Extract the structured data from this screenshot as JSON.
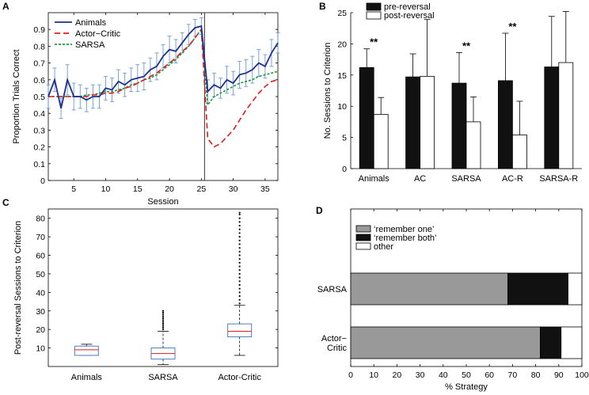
{
  "chart_data": [
    {
      "panel": "A",
      "type": "line",
      "xlabel": "Session",
      "ylabel": "Proportion Trials Correct",
      "xlim": [
        1,
        37
      ],
      "ylim": [
        0,
        1
      ],
      "xticks": [
        5,
        10,
        15,
        20,
        25,
        30,
        35
      ],
      "yticks": [
        0,
        0.1,
        0.2,
        0.3,
        0.4,
        0.5,
        0.6,
        0.7,
        0.8,
        0.9
      ],
      "reversal_session": 25.5,
      "legend_position": "top-left",
      "series": [
        {
          "name": "Animals",
          "color": "#1f2f8f",
          "style": "solid",
          "x": [
            1,
            2,
            3,
            4,
            5,
            6,
            7,
            8,
            9,
            10,
            11,
            12,
            13,
            14,
            15,
            16,
            17,
            18,
            19,
            20,
            21,
            22,
            23,
            24,
            25,
            26,
            27,
            28,
            29,
            30,
            31,
            32,
            33,
            34,
            35,
            36,
            37
          ],
          "values": [
            0.5,
            0.6,
            0.43,
            0.6,
            0.5,
            0.5,
            0.48,
            0.5,
            0.5,
            0.55,
            0.54,
            0.59,
            0.57,
            0.6,
            0.61,
            0.62,
            0.66,
            0.68,
            0.74,
            0.78,
            0.77,
            0.82,
            0.87,
            0.91,
            0.92,
            0.53,
            0.57,
            0.55,
            0.6,
            0.58,
            0.63,
            0.64,
            0.66,
            0.7,
            0.68,
            0.76,
            0.82
          ],
          "errors": [
            0.07,
            0.07,
            0.06,
            0.09,
            0.08,
            0.07,
            0.07,
            0.07,
            0.07,
            0.07,
            0.07,
            0.07,
            0.07,
            0.07,
            0.08,
            0.08,
            0.07,
            0.08,
            0.07,
            0.08,
            0.07,
            0.06,
            0.06,
            0.05,
            0.05,
            0.07,
            0.07,
            0.06,
            0.08,
            0.07,
            0.08,
            0.08,
            0.08,
            0.08,
            0.07,
            0.08,
            0.06
          ]
        },
        {
          "name": "Actor−Critic",
          "color": "#e31a1c",
          "style": "dashed",
          "x": [
            1,
            2,
            3,
            4,
            5,
            6,
            7,
            8,
            9,
            10,
            11,
            12,
            13,
            14,
            15,
            16,
            17,
            18,
            19,
            20,
            21,
            22,
            23,
            24,
            25,
            26,
            27,
            28,
            29,
            30,
            31,
            32,
            33,
            34,
            35,
            36,
            37
          ],
          "values": [
            0.5,
            0.5,
            0.5,
            0.5,
            0.5,
            0.5,
            0.5,
            0.51,
            0.51,
            0.52,
            0.52,
            0.53,
            0.55,
            0.56,
            0.58,
            0.6,
            0.62,
            0.64,
            0.67,
            0.7,
            0.73,
            0.77,
            0.8,
            0.85,
            0.9,
            0.25,
            0.2,
            0.22,
            0.26,
            0.3,
            0.36,
            0.42,
            0.47,
            0.52,
            0.56,
            0.59,
            0.6
          ]
        },
        {
          "name": "SARSA",
          "color": "#1a9a3a",
          "style": "dotted",
          "x": [
            1,
            2,
            3,
            4,
            5,
            6,
            7,
            8,
            9,
            10,
            11,
            12,
            13,
            14,
            15,
            16,
            17,
            18,
            19,
            20,
            21,
            22,
            23,
            24,
            25,
            26,
            27,
            28,
            29,
            30,
            31,
            32,
            33,
            34,
            35,
            36,
            37
          ],
          "values": [
            0.5,
            0.5,
            0.5,
            0.5,
            0.5,
            0.5,
            0.51,
            0.51,
            0.52,
            0.53,
            0.53,
            0.54,
            0.55,
            0.57,
            0.58,
            0.6,
            0.61,
            0.63,
            0.66,
            0.69,
            0.72,
            0.76,
            0.8,
            0.85,
            0.9,
            0.45,
            0.5,
            0.52,
            0.54,
            0.56,
            0.58,
            0.59,
            0.6,
            0.62,
            0.63,
            0.64,
            0.65
          ]
        }
      ]
    },
    {
      "panel": "B",
      "type": "bar",
      "ylabel": "No. Sessions to Criterion",
      "ylim": [
        0,
        25
      ],
      "yticks": [
        0,
        5,
        10,
        15,
        20,
        25
      ],
      "categories": [
        "Animals",
        "AC",
        "SARSA",
        "AC-R",
        "SARSA-R"
      ],
      "legend_position": "top-left",
      "series": [
        {
          "name": "pre-reversal",
          "color": "#111111",
          "values": [
            16.2,
            14.7,
            13.7,
            14.1,
            16.3
          ],
          "errors": [
            3.0,
            3.7,
            4.9,
            7.6,
            8.1
          ]
        },
        {
          "name": "post-reversal",
          "color": "#ffffff",
          "values": [
            8.7,
            14.8,
            7.5,
            5.4,
            17.0
          ],
          "errors": [
            2.7,
            9.1,
            4.0,
            5.4,
            8.2
          ]
        }
      ],
      "significance": [
        "**",
        "",
        "**",
        "**",
        ""
      ]
    },
    {
      "panel": "C",
      "type": "box",
      "ylabel": "Post-reversal Sessions to Criterion",
      "ylim": [
        0,
        85
      ],
      "yticks": [
        10,
        20,
        30,
        40,
        50,
        60,
        70,
        80
      ],
      "categories": [
        "Animals",
        "SARSA",
        "Actor-Critic"
      ],
      "boxes": [
        {
          "name": "Animals",
          "min": 6,
          "q1": 6,
          "median": 9,
          "q3": 11,
          "max": 12,
          "outliers": []
        },
        {
          "name": "SARSA",
          "min": 1,
          "q1": 4,
          "median": 7,
          "q3": 10,
          "max": 19,
          "outliers": [
            20,
            21,
            22,
            23,
            24,
            25,
            26,
            27,
            28,
            29,
            30
          ]
        },
        {
          "name": "Actor-Critic",
          "min": 6,
          "q1": 16,
          "median": 19,
          "q3": 23,
          "max": 33,
          "outliers": [
            34,
            36,
            38,
            40,
            42,
            44,
            46,
            48,
            50,
            52,
            54,
            56,
            58,
            60,
            62,
            64,
            66,
            68,
            70,
            72,
            74,
            76,
            78,
            80,
            82,
            83
          ]
        }
      ]
    },
    {
      "panel": "D",
      "type": "bar",
      "orientation": "horizontal",
      "stacked": true,
      "xlabel": "% Strategy",
      "xlim": [
        0,
        100
      ],
      "xticks": [
        0,
        10,
        20,
        30,
        40,
        50,
        60,
        70,
        80,
        90,
        100
      ],
      "categories": [
        [
          "SARSA"
        ],
        [
          "Actor−",
          "Critic"
        ]
      ],
      "legend_position": "top-left",
      "series": [
        {
          "name": "‘remember one’",
          "color": "#999999",
          "values": [
            68,
            82
          ]
        },
        {
          "name": "‘remember both’",
          "color": "#111111",
          "values": [
            26,
            9
          ]
        },
        {
          "name": "other",
          "color": "#ffffff",
          "values": [
            6,
            9
          ]
        }
      ]
    }
  ]
}
